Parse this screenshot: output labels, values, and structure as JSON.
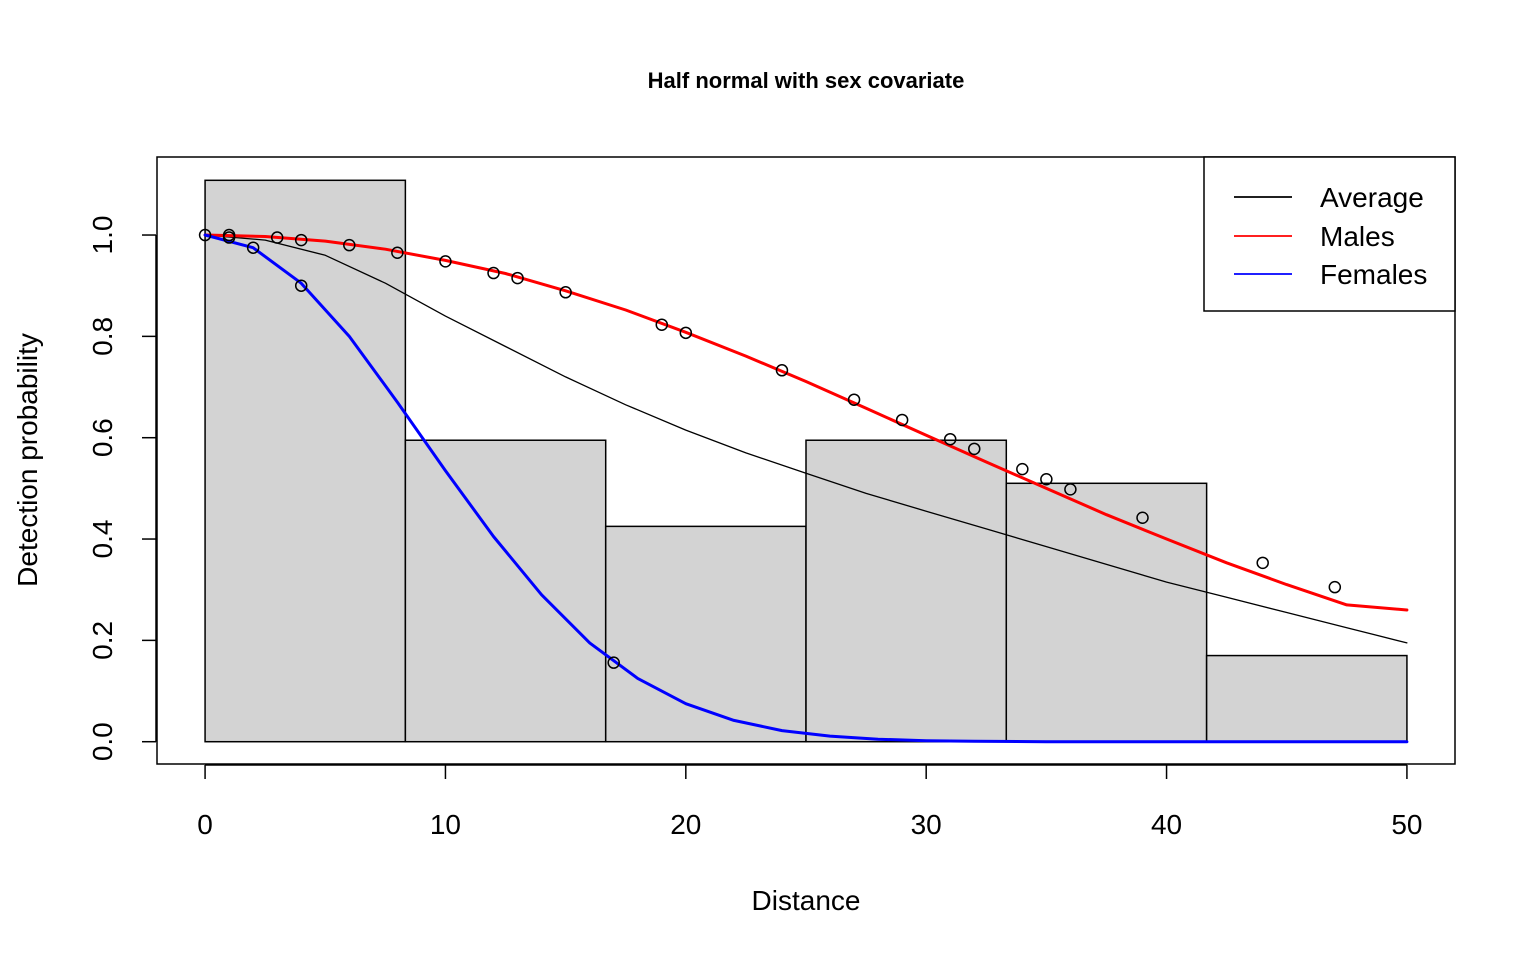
{
  "chart_data": {
    "type": "line",
    "title": "Half normal with sex covariate",
    "xlabel": "Distance",
    "ylabel": "Detection probability",
    "xlim": [
      -2,
      52
    ],
    "ylim": [
      -0.044,
      1.154
    ],
    "xticks": [
      0,
      10,
      20,
      30,
      40,
      50
    ],
    "xtick_labels": [
      "0",
      "10",
      "20",
      "30",
      "40",
      "50"
    ],
    "yticks": [
      0.0,
      0.2,
      0.4,
      0.6,
      0.8,
      1.0
    ],
    "ytick_labels": [
      "0.0",
      "0.2",
      "0.4",
      "0.6",
      "0.8",
      "1.0"
    ],
    "histogram": {
      "breaks": [
        0,
        8.333,
        16.667,
        25,
        33.333,
        41.667,
        50
      ],
      "values": [
        1.108,
        0.595,
        0.425,
        0.595,
        0.51,
        0.17
      ],
      "fill": "#d3d3d3",
      "edge": "#000000"
    },
    "series": [
      {
        "name": "Average",
        "color": "#000000",
        "width": 1.3,
        "x": [
          0,
          2.5,
          5,
          7.5,
          10,
          12.5,
          15,
          17.5,
          20,
          22.5,
          25,
          27.5,
          30,
          32.5,
          35,
          37.5,
          40,
          42.5,
          45,
          47.5,
          50
        ],
        "y": [
          1.0,
          0.99,
          0.96,
          0.905,
          0.84,
          0.78,
          0.72,
          0.665,
          0.615,
          0.57,
          0.53,
          0.49,
          0.455,
          0.42,
          0.385,
          0.35,
          0.315,
          0.285,
          0.255,
          0.225,
          0.195
        ]
      },
      {
        "name": "Males",
        "color": "#ff0000",
        "width": 3,
        "x": [
          0,
          2.5,
          5,
          7.5,
          10,
          12.5,
          15,
          17.5,
          20,
          22.5,
          25,
          27.5,
          30,
          32.5,
          35,
          37.5,
          40,
          42.5,
          45,
          47.5,
          50
        ],
        "y": [
          1.0,
          0.997,
          0.988,
          0.972,
          0.95,
          0.924,
          0.89,
          0.852,
          0.808,
          0.761,
          0.711,
          0.658,
          0.605,
          0.552,
          0.5,
          0.448,
          0.4,
          0.353,
          0.31,
          0.27,
          0.26
        ]
      },
      {
        "name": "Females",
        "color": "#0000ff",
        "width": 3,
        "x": [
          0,
          2,
          4,
          6,
          8,
          10,
          12,
          14,
          16,
          18,
          20,
          22,
          24,
          26,
          28,
          30,
          32,
          35,
          40,
          45,
          50
        ],
        "y": [
          1.0,
          0.975,
          0.905,
          0.8,
          0.67,
          0.535,
          0.405,
          0.29,
          0.195,
          0.125,
          0.075,
          0.042,
          0.022,
          0.011,
          0.005,
          0.002,
          0.001,
          0.0,
          0.0,
          0.0,
          0.0
        ]
      }
    ],
    "points": {
      "x": [
        0,
        1,
        1,
        2,
        3,
        4,
        4,
        6,
        8,
        10,
        12,
        13,
        15,
        17,
        19,
        20,
        24,
        27,
        29,
        31,
        32,
        34,
        35,
        36,
        39,
        44,
        47
      ],
      "y": [
        1.0,
        1.0,
        0.995,
        0.975,
        0.995,
        0.99,
        0.9,
        0.98,
        0.965,
        0.948,
        0.925,
        0.915,
        0.887,
        0.156,
        0.823,
        0.807,
        0.733,
        0.675,
        0.635,
        0.597,
        0.578,
        0.538,
        0.518,
        0.498,
        0.442,
        0.353,
        0.305
      ],
      "shape": "open-circle"
    },
    "legend": {
      "placement": "top-right",
      "entries": [
        "Average",
        "Males",
        "Females"
      ]
    },
    "grid": false
  }
}
